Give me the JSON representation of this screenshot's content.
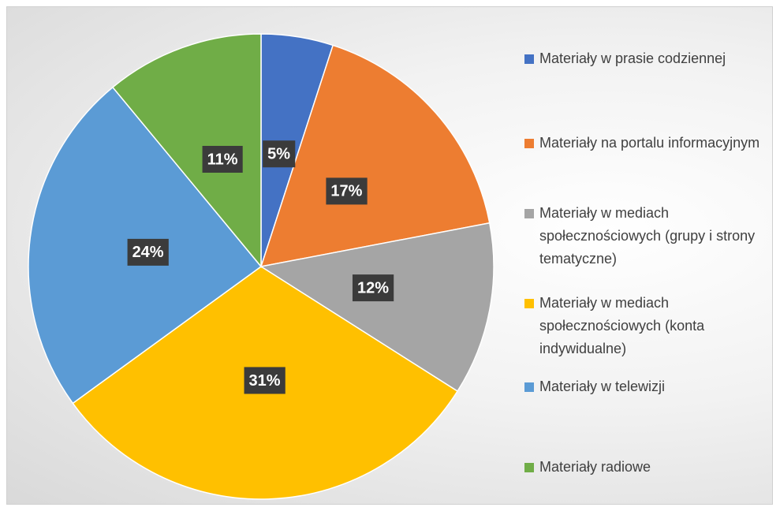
{
  "chart_data": {
    "type": "pie",
    "categories": [
      "Materiały w prasie codziennej",
      "Materiały na portalu informacyjnym",
      "Materiały w mediach społecznościowych (grupy i strony tematyczne)",
      "Materiały w mediach społecznościowych (konta indywidualne)",
      "Materiały w telewizji",
      "Materiały radiowe"
    ],
    "values": [
      5,
      17,
      12,
      31,
      24,
      11
    ],
    "value_labels": [
      "5%",
      "17%",
      "12%",
      "31%",
      "24%",
      "11%"
    ],
    "colors": [
      "#4472c4",
      "#ed7d31",
      "#a5a5a5",
      "#ffc000",
      "#5b9bd5",
      "#70ad47"
    ],
    "legend": "right"
  }
}
